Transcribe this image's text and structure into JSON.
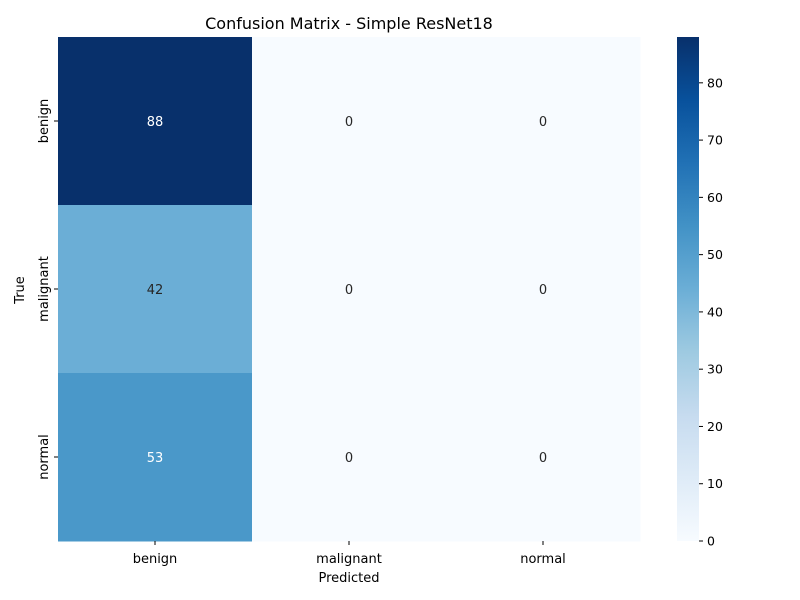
{
  "chart_data": {
    "type": "heatmap",
    "title": "Confusion Matrix - Simple ResNet18",
    "xlabel": "Predicted",
    "ylabel": "True",
    "x_categories": [
      "benign",
      "malignant",
      "normal"
    ],
    "y_categories": [
      "benign",
      "malignant",
      "normal"
    ],
    "values": [
      [
        88,
        0,
        0
      ],
      [
        42,
        0,
        0
      ],
      [
        53,
        0,
        0
      ]
    ],
    "colorbar": {
      "min": 0,
      "max": 88,
      "ticks": [
        0,
        10,
        20,
        30,
        40,
        50,
        60,
        70,
        80
      ],
      "colormap": "Blues"
    },
    "colors": {
      "cells": {
        "88": "#08306b",
        "42": "#6baed6",
        "53": "#4a98c9",
        "0": "#f7fbff"
      },
      "text_dark": "#262626",
      "text_light": "#ffffff"
    }
  }
}
